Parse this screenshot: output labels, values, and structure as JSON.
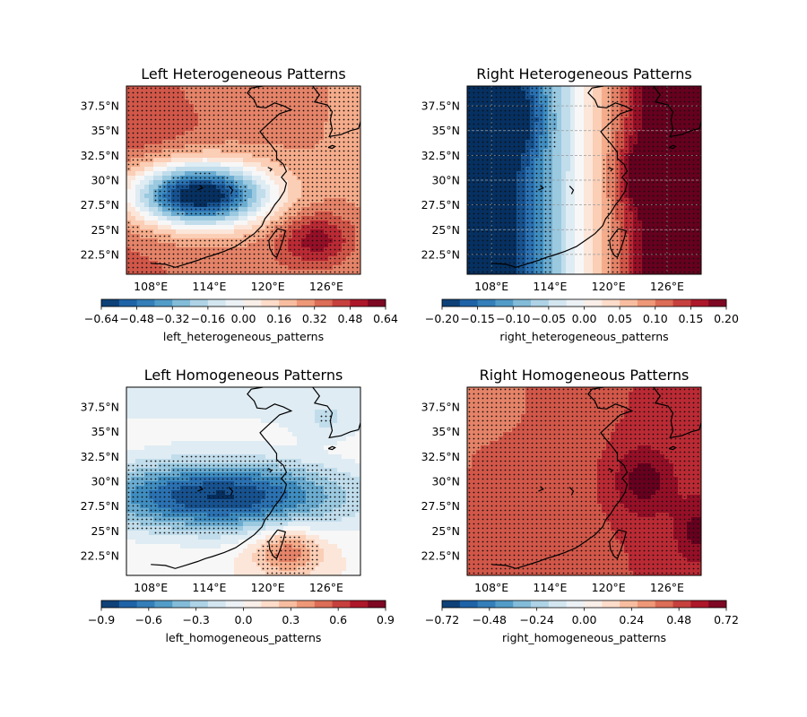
{
  "figure": {
    "layout": "2x2 map panels with horizontal colorbars"
  },
  "lat_ticks": [
    "37.5°N",
    "35°N",
    "32.5°N",
    "30°N",
    "27.5°N",
    "25°N",
    "22.5°N"
  ],
  "lon_ticks": [
    "108°E",
    "114°E",
    "120°E",
    "126°E"
  ],
  "extent": {
    "lon": [
      105.5,
      129.5
    ],
    "lat": [
      20.5,
      39.5
    ]
  },
  "colormap": "RdBu_r",
  "colormap_stops": [
    "#053061",
    "#2166ac",
    "#4393c3",
    "#92c5de",
    "#d1e5f0",
    "#f7f7f7",
    "#fddbc7",
    "#f4a582",
    "#d6604d",
    "#b2182b",
    "#67001f"
  ],
  "panels": [
    {
      "id": "left-heterogeneous",
      "title": "Left Heterogeneous Patterns",
      "colorbar_label": "left_heterogeneous_patterns",
      "colorbar_ticks": [
        "−0.64",
        "−0.48",
        "−0.32",
        "−0.16",
        "0.00",
        "0.16",
        "0.32",
        "0.48",
        "0.64"
      ],
      "vmin": -0.64,
      "vmax": 0.64,
      "gridlines": false,
      "stippling": "widespread"
    },
    {
      "id": "right-heterogeneous",
      "title": "Right Heterogeneous Patterns",
      "colorbar_label": "right_heterogeneous_patterns",
      "colorbar_ticks": [
        "−0.20",
        "−0.15",
        "−0.10",
        "−0.05",
        "0.00",
        "0.05",
        "0.10",
        "0.15",
        "0.20"
      ],
      "vmin": -0.22,
      "vmax": 0.22,
      "gridlines": true,
      "stippling": "east and north-west"
    },
    {
      "id": "left-homogeneous",
      "title": "Left Homogeneous Patterns",
      "colorbar_label": "left_homogeneous_patterns",
      "colorbar_ticks": [
        "−0.9",
        "−0.6",
        "−0.3",
        "0.0",
        "0.3",
        "0.6",
        "0.9"
      ],
      "vmin": -1.0,
      "vmax": 1.0,
      "gridlines": false,
      "stippling": "widespread"
    },
    {
      "id": "right-homogeneous",
      "title": "Right Homogeneous Patterns",
      "colorbar_label": "right_homogeneous_patterns",
      "colorbar_ticks": [
        "−0.72",
        "−0.48",
        "−0.24",
        "0.00",
        "0.24",
        "0.48",
        "0.72"
      ],
      "vmin": -0.8,
      "vmax": 0.8,
      "gridlines": false,
      "stippling": "full"
    }
  ]
}
